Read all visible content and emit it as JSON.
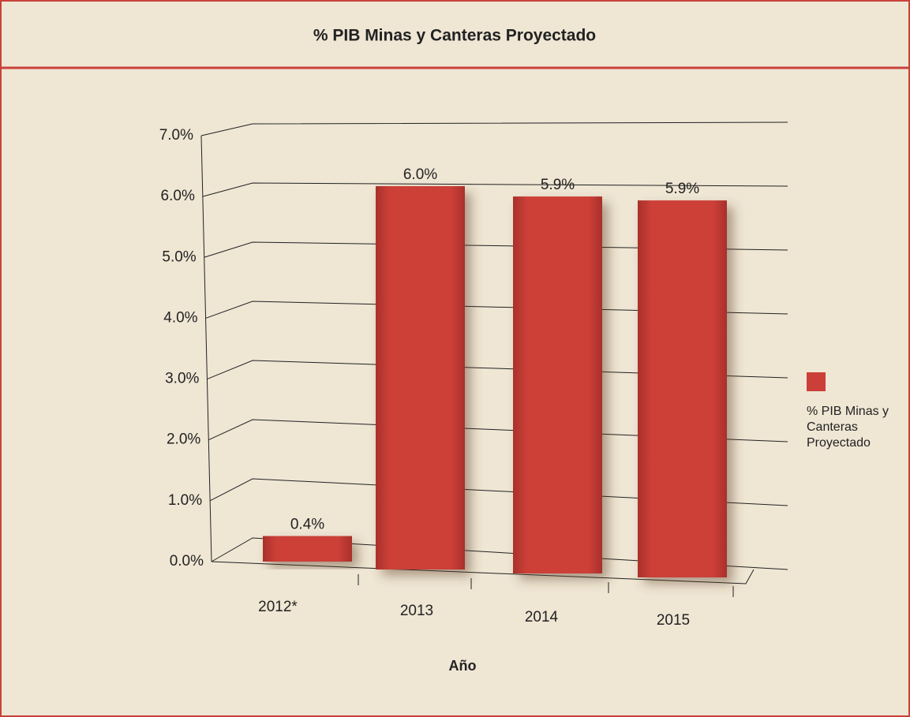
{
  "chart_data": {
    "type": "bar",
    "title": "% PIB Minas y Canteras Proyectado",
    "categories": [
      "2012*",
      "2013",
      "2014",
      "2015"
    ],
    "series": [
      {
        "name": "% PIB Minas y Canteras Proyectado",
        "color": "#cc3f38",
        "values": [
          0.4,
          6.0,
          5.9,
          5.9
        ],
        "value_labels": [
          "0.4%",
          "6.0%",
          "5.9%",
          "5.9%"
        ]
      }
    ],
    "ylim": [
      0,
      7
    ],
    "yticks": [
      {
        "value": 0,
        "label": "0.0%"
      },
      {
        "value": 1,
        "label": "1.0%"
      },
      {
        "value": 2,
        "label": "2.0%"
      },
      {
        "value": 3,
        "label": "3.0%"
      },
      {
        "value": 4,
        "label": "4.0%"
      },
      {
        "value": 5,
        "label": "5.0%"
      },
      {
        "value": 6,
        "label": "6.0%"
      },
      {
        "value": 7,
        "label": "7.0%"
      }
    ],
    "xlabel": "Año",
    "grid": true,
    "legend": "right"
  }
}
